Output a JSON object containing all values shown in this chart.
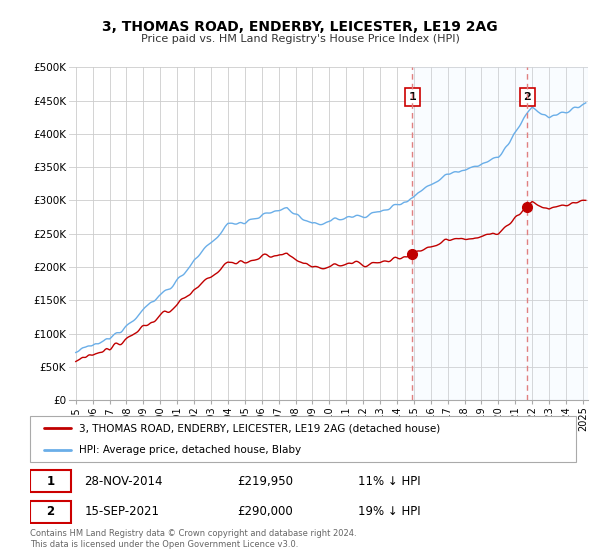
{
  "title": "3, THOMAS ROAD, ENDERBY, LEICESTER, LE19 2AG",
  "subtitle": "Price paid vs. HM Land Registry's House Price Index (HPI)",
  "ylim": [
    0,
    500000
  ],
  "yticks": [
    0,
    50000,
    100000,
    150000,
    200000,
    250000,
    300000,
    350000,
    400000,
    450000,
    500000
  ],
  "xlim_start": 1994.6,
  "xlim_end": 2025.3,
  "sale1_x": 2014.91,
  "sale1_y": 219950,
  "sale2_x": 2021.71,
  "sale2_y": 290000,
  "hpi_color": "#6aaee8",
  "sale_color": "#c00000",
  "vline_color": "#e08080",
  "shade_color": "#ddeeff",
  "background_color": "#ffffff",
  "grid_color": "#cccccc",
  "legend_address": "3, THOMAS ROAD, ENDERBY, LEICESTER, LE19 2AG (detached house)",
  "legend_hpi": "HPI: Average price, detached house, Blaby",
  "sale1_date": "28-NOV-2014",
  "sale1_price": "£219,950",
  "sale1_hpi": "11% ↓ HPI",
  "sale2_date": "15-SEP-2021",
  "sale2_price": "£290,000",
  "sale2_hpi": "19% ↓ HPI",
  "footnote": "Contains HM Land Registry data © Crown copyright and database right 2024.\nThis data is licensed under the Open Government Licence v3.0."
}
